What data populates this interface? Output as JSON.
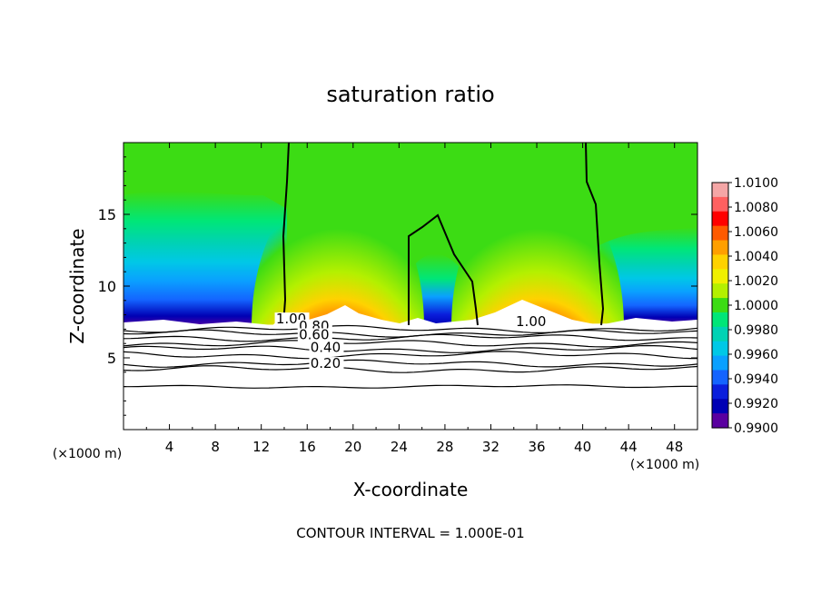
{
  "chart_data": {
    "type": "heatmap",
    "title": "saturation ratio",
    "xlabel": "X-coordinate",
    "ylabel": "Z-coordinate",
    "x_unit_left": "(×1000 m)",
    "x_unit_right": "(×1000 m)",
    "xlim": [
      0,
      50
    ],
    "ylim": [
      0,
      20
    ],
    "x_ticks": [
      4,
      8,
      12,
      16,
      20,
      24,
      28,
      32,
      36,
      40,
      44,
      48
    ],
    "y_ticks": [
      5,
      10,
      15
    ],
    "footer": "CONTOUR INTERVAL = 1.000E-01",
    "colorbar": {
      "labels": [
        "1.0100",
        "1.0080",
        "1.0060",
        "1.0040",
        "1.0020",
        "1.0000",
        "0.9980",
        "0.9960",
        "0.9940",
        "0.9920",
        "0.9900"
      ],
      "colors": [
        "#f4a6a6",
        "#ff6060",
        "#ff0000",
        "#ff5a00",
        "#ff9f00",
        "#ffd200",
        "#f0f000",
        "#b4f000",
        "#3cdc14",
        "#00e678",
        "#00d2b4",
        "#00c8e6",
        "#0aa0ff",
        "#1464ff",
        "#0a1edc",
        "#0000b4",
        "#5a00a0"
      ]
    },
    "contour_labels": [
      {
        "text": "1.00",
        "x": 14.6,
        "y": 7.4
      },
      {
        "text": "1.00",
        "x": 35.5,
        "y": 7.2
      },
      {
        "text": "0.80",
        "x": 16.6,
        "y": 6.9
      },
      {
        "text": "0.60",
        "x": 16.6,
        "y": 6.3
      },
      {
        "text": "0.40",
        "x": 17.6,
        "y": 5.4
      },
      {
        "text": "0.20",
        "x": 17.6,
        "y": 4.3
      }
    ],
    "contour_lines_y": [
      7.0,
      6.7,
      6.4,
      6.0,
      5.6,
      5.2,
      4.6,
      4.2,
      3.0
    ],
    "grid": false
  }
}
